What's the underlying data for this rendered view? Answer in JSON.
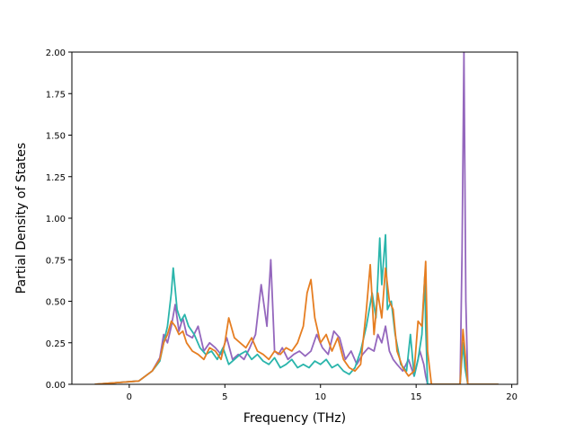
{
  "chart_data": {
    "type": "line",
    "title": "",
    "xlabel": "Frequency (THz)",
    "ylabel": "Partial Density of States",
    "xlim": [
      -3,
      20.3
    ],
    "ylim": [
      0,
      2.0
    ],
    "x_ticks": [
      0,
      5,
      10,
      15,
      20
    ],
    "x_tick_labels": [
      "0",
      "5",
      "10",
      "15",
      "20"
    ],
    "y_ticks": [
      0.0,
      0.25,
      0.5,
      0.75,
      1.0,
      1.25,
      1.5,
      1.75,
      2.0
    ],
    "y_tick_labels": [
      "0.00",
      "0.25",
      "0.50",
      "0.75",
      "1.00",
      "1.25",
      "1.50",
      "1.75",
      "2.00"
    ],
    "grid": false,
    "legend": "none",
    "series": [
      {
        "color": "#9467bd",
        "x": [
          -1.8,
          0.5,
          1.2,
          1.6,
          1.8,
          2.0,
          2.2,
          2.4,
          2.6,
          2.8,
          3.0,
          3.3,
          3.6,
          3.9,
          4.2,
          4.5,
          4.8,
          5.1,
          5.4,
          5.7,
          6.0,
          6.3,
          6.6,
          6.9,
          7.2,
          7.4,
          7.6,
          7.8,
          8.0,
          8.3,
          8.6,
          8.9,
          9.2,
          9.5,
          9.8,
          10.1,
          10.4,
          10.7,
          11.0,
          11.3,
          11.6,
          11.9,
          12.2,
          12.5,
          12.8,
          13.0,
          13.2,
          13.4,
          13.6,
          13.8,
          14.0,
          14.3,
          14.6,
          14.9,
          15.2,
          15.4,
          15.5,
          15.6,
          15.8,
          16.2,
          17.0,
          17.3,
          17.4,
          17.5,
          17.6,
          17.7,
          19.3
        ],
        "y": [
          0.0,
          0.02,
          0.08,
          0.16,
          0.3,
          0.25,
          0.35,
          0.48,
          0.32,
          0.4,
          0.3,
          0.28,
          0.35,
          0.2,
          0.25,
          0.22,
          0.18,
          0.28,
          0.15,
          0.18,
          0.15,
          0.22,
          0.3,
          0.6,
          0.35,
          0.75,
          0.2,
          0.18,
          0.22,
          0.15,
          0.18,
          0.2,
          0.17,
          0.2,
          0.3,
          0.22,
          0.18,
          0.32,
          0.28,
          0.15,
          0.2,
          0.12,
          0.18,
          0.22,
          0.2,
          0.3,
          0.25,
          0.35,
          0.2,
          0.15,
          0.12,
          0.08,
          0.15,
          0.05,
          0.2,
          0.12,
          0.05,
          0.0,
          0.0,
          0.0,
          0.0,
          0.0,
          0.8,
          2.0,
          0.5,
          0.0,
          0.0
        ]
      },
      {
        "color": "#2ab5ab",
        "x": [
          -1.8,
          0.5,
          1.2,
          1.6,
          1.8,
          2.0,
          2.2,
          2.3,
          2.5,
          2.7,
          2.9,
          3.1,
          3.4,
          3.7,
          4.0,
          4.3,
          4.6,
          4.9,
          5.2,
          5.5,
          5.8,
          6.1,
          6.4,
          6.7,
          7.0,
          7.3,
          7.6,
          7.9,
          8.2,
          8.5,
          8.8,
          9.1,
          9.4,
          9.7,
          10.0,
          10.3,
          10.6,
          10.9,
          11.2,
          11.5,
          11.8,
          12.1,
          12.4,
          12.7,
          12.9,
          13.1,
          13.2,
          13.4,
          13.5,
          13.7,
          13.9,
          14.2,
          14.5,
          14.7,
          14.9,
          15.1,
          15.3,
          15.45,
          15.5,
          15.6,
          15.8,
          17.0,
          17.3,
          17.45,
          17.55,
          17.7,
          19.3
        ],
        "y": [
          0.0,
          0.02,
          0.08,
          0.14,
          0.25,
          0.35,
          0.55,
          0.7,
          0.45,
          0.38,
          0.42,
          0.35,
          0.3,
          0.22,
          0.18,
          0.2,
          0.15,
          0.22,
          0.12,
          0.15,
          0.18,
          0.2,
          0.15,
          0.18,
          0.14,
          0.12,
          0.16,
          0.1,
          0.12,
          0.15,
          0.1,
          0.12,
          0.1,
          0.14,
          0.12,
          0.15,
          0.1,
          0.12,
          0.08,
          0.06,
          0.1,
          0.2,
          0.35,
          0.55,
          0.4,
          0.88,
          0.6,
          0.9,
          0.45,
          0.5,
          0.3,
          0.12,
          0.08,
          0.3,
          0.05,
          0.15,
          0.3,
          0.65,
          0.35,
          0.0,
          0.0,
          0.0,
          0.0,
          0.25,
          0.1,
          0.0,
          0.0
        ]
      },
      {
        "color": "#e67e22",
        "x": [
          -1.8,
          0.5,
          1.2,
          1.6,
          1.8,
          2.0,
          2.2,
          2.4,
          2.6,
          2.8,
          3.0,
          3.3,
          3.6,
          3.9,
          4.2,
          4.5,
          4.8,
          5.0,
          5.2,
          5.5,
          5.8,
          6.1,
          6.4,
          6.7,
          7.0,
          7.3,
          7.6,
          7.9,
          8.2,
          8.5,
          8.8,
          9.1,
          9.3,
          9.5,
          9.7,
          10.0,
          10.3,
          10.6,
          10.9,
          11.2,
          11.5,
          11.8,
          12.1,
          12.4,
          12.6,
          12.8,
          13.0,
          13.2,
          13.4,
          13.6,
          13.8,
          14.0,
          14.3,
          14.6,
          14.9,
          15.1,
          15.3,
          15.5,
          15.6,
          15.8,
          17.0,
          17.3,
          17.45,
          17.55,
          17.7,
          19.3
        ],
        "y": [
          0.0,
          0.02,
          0.08,
          0.15,
          0.25,
          0.3,
          0.38,
          0.35,
          0.3,
          0.32,
          0.25,
          0.2,
          0.18,
          0.15,
          0.22,
          0.2,
          0.15,
          0.25,
          0.4,
          0.28,
          0.25,
          0.22,
          0.28,
          0.2,
          0.18,
          0.15,
          0.2,
          0.18,
          0.22,
          0.2,
          0.25,
          0.35,
          0.55,
          0.63,
          0.4,
          0.25,
          0.3,
          0.2,
          0.28,
          0.15,
          0.1,
          0.08,
          0.12,
          0.45,
          0.72,
          0.3,
          0.55,
          0.4,
          0.7,
          0.5,
          0.45,
          0.2,
          0.1,
          0.05,
          0.08,
          0.38,
          0.35,
          0.74,
          0.2,
          0.0,
          0.0,
          0.0,
          0.33,
          0.2,
          0.0,
          0.0
        ]
      }
    ]
  }
}
